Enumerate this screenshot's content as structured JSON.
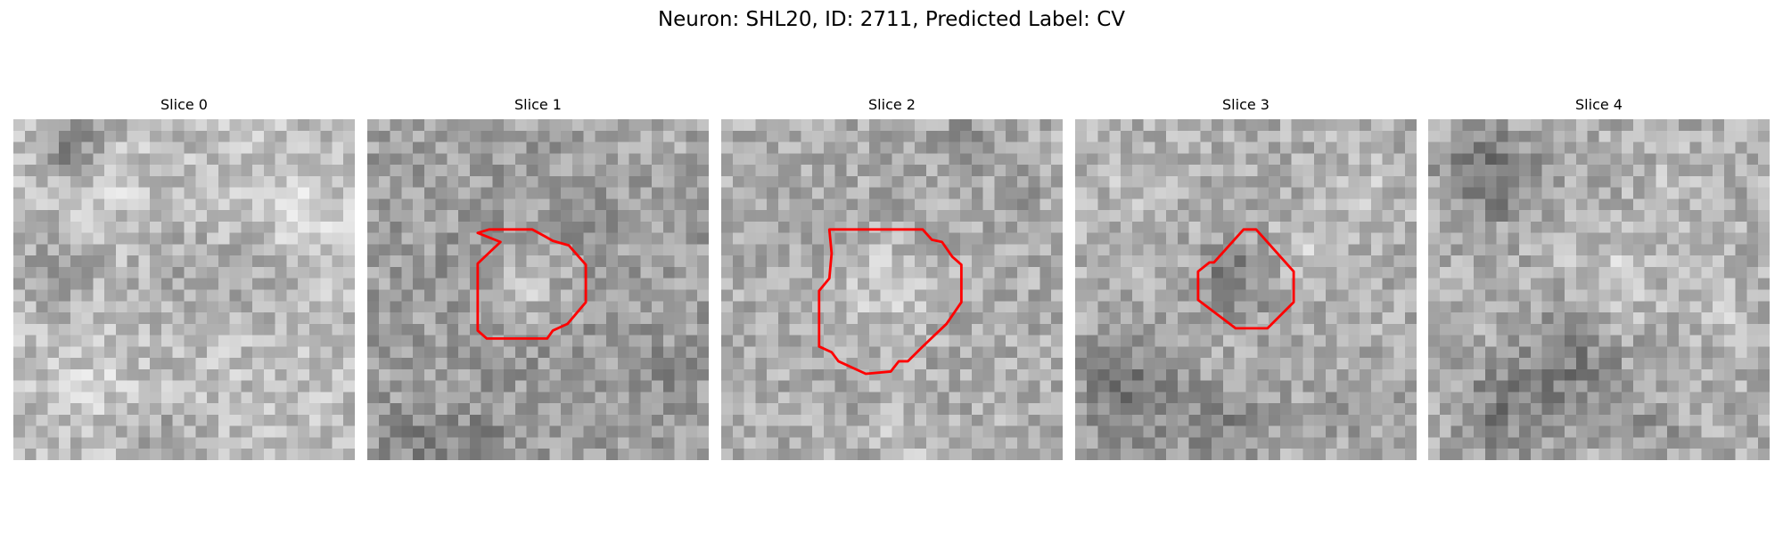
{
  "figure": {
    "suptitle": "Neuron: SHL20, ID: 2711, Predicted Label: CV",
    "image_grid_size": 30,
    "colormap": "gray",
    "contour_color": "#ff0000",
    "panels": [
      {
        "title": "Slice 0",
        "has_contour": false
      },
      {
        "title": "Slice 1",
        "has_contour": true
      },
      {
        "title": "Slice 2",
        "has_contour": true
      },
      {
        "title": "Slice 3",
        "has_contour": true
      },
      {
        "title": "Slice 4",
        "has_contour": false
      }
    ]
  }
}
